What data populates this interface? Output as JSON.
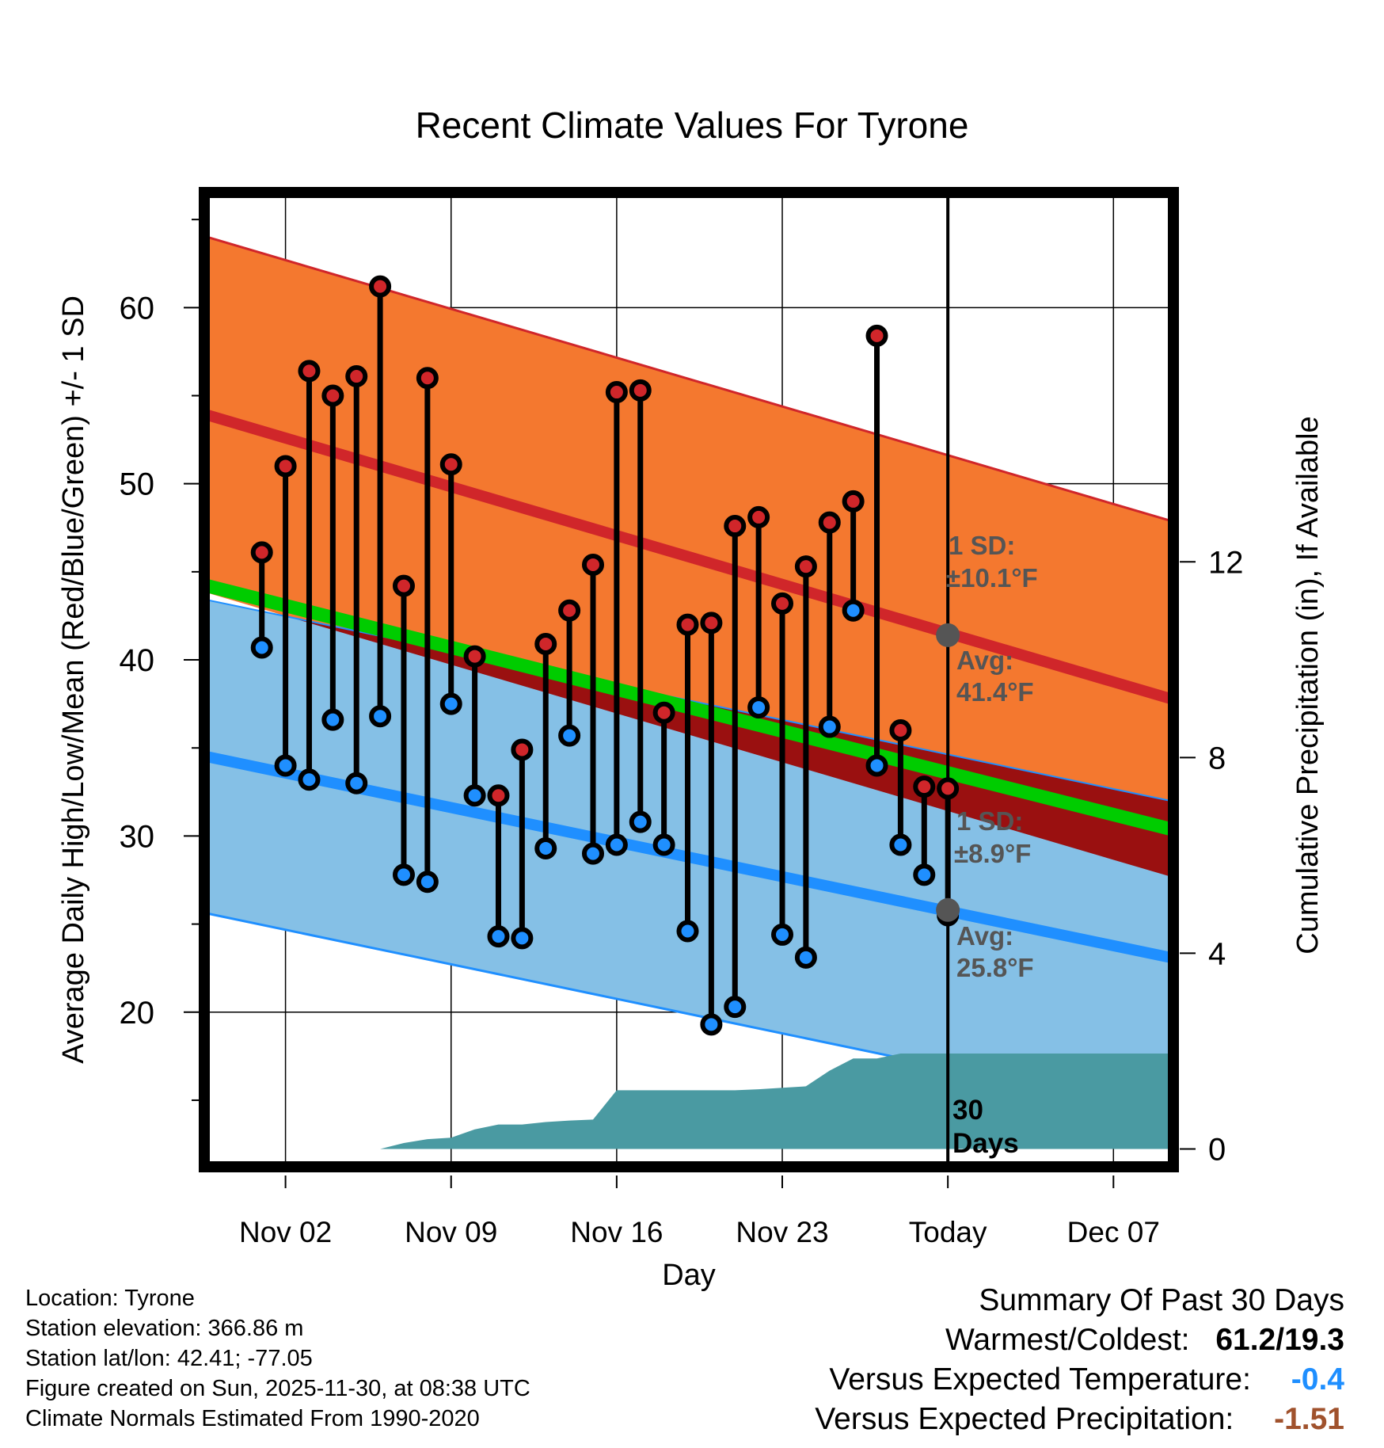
{
  "chart_data": {
    "type": "line",
    "title": "Recent Climate Values For Tyrone",
    "xlabel": "Day",
    "ylabel": "Average Daily High/Low/Mean (Red/Blue/Green) +/- 1 SD",
    "y2label": "Cumulative Precipitation (in), If Available",
    "x_tick_labels": [
      "Nov 02",
      "Nov 09",
      "Nov 16",
      "Nov 23",
      "Today",
      "Dec 07"
    ],
    "x_tick_days": [
      2,
      9,
      16,
      23,
      30,
      37
    ],
    "xlim": [
      -1.3,
      39.4
    ],
    "ylim": [
      11.4,
      66.4
    ],
    "y_ticks": [
      20,
      30,
      40,
      50,
      60
    ],
    "y2lim": [
      -0.3,
      19.5
    ],
    "y2_ticks": [
      0,
      4,
      8,
      12
    ],
    "today_day": 30,
    "normals": {
      "high_mean": {
        "start": 53.9,
        "end": 37.8
      },
      "high_sd": 10.1,
      "low_mean": {
        "start": 34.5,
        "end": 23.1
      },
      "low_sd": 8.9,
      "mean_line": {
        "start": 44.2,
        "end": 30.4
      },
      "x_range": [
        -1.3,
        39.4
      ]
    },
    "highs": [
      46.1,
      51.0,
      56.4,
      55.0,
      56.1,
      61.2,
      44.2,
      56.0,
      51.1,
      40.2,
      32.3,
      34.9,
      40.9,
      42.8,
      45.4,
      55.2,
      55.3,
      37.0,
      42.0,
      42.1,
      47.6,
      48.1,
      43.2,
      45.3,
      47.8,
      49.0,
      58.4,
      36.0,
      32.8,
      32.7
    ],
    "lows": [
      40.7,
      34.0,
      33.2,
      36.6,
      33.0,
      36.8,
      27.8,
      27.4,
      37.5,
      32.3,
      24.3,
      24.2,
      29.3,
      35.7,
      29.0,
      29.5,
      30.8,
      29.5,
      24.6,
      19.3,
      20.3,
      37.3,
      24.4,
      23.1,
      36.2,
      42.8,
      34.0,
      29.5,
      27.8,
      25.5
    ],
    "precip_cumulative": {
      "days": [
        1,
        2,
        3,
        4,
        5,
        6,
        7,
        8,
        9,
        10,
        11,
        12,
        13,
        14,
        15,
        16,
        17,
        18,
        19,
        20,
        21,
        22,
        23,
        24,
        25,
        26,
        27,
        28,
        29,
        30,
        39.4
      ],
      "values": [
        0,
        0,
        0,
        0,
        0,
        0,
        0.12,
        0.2,
        0.23,
        0.4,
        0.5,
        0.5,
        0.55,
        0.58,
        0.6,
        1.2,
        1.2,
        1.2,
        1.2,
        1.2,
        1.2,
        1.22,
        1.25,
        1.28,
        1.6,
        1.85,
        1.85,
        1.95,
        1.95,
        1.95,
        1.95
      ]
    },
    "annotations": {
      "high_sd_label_1": "1 SD:",
      "high_sd_label_2": "±10.1°F",
      "high_avg_label_1": "Avg:",
      "high_avg_label_2": "41.4°F",
      "high_avg_value": 41.4,
      "low_sd_label_1": "1 SD:",
      "low_sd_label_2": "±8.9°F",
      "low_avg_label_1": "Avg:",
      "low_avg_label_2": "25.8°F",
      "low_avg_value": 25.8,
      "days_label_1": "30",
      "days_label_2": "Days"
    },
    "colors": {
      "high_band": "#f4782f",
      "high_line": "#d0262a",
      "low_band": "#85c0e6",
      "low_line": "#1f8fff",
      "mean_line": "#00cc00",
      "overlap": "#9a1010",
      "precip": "#4a9aa2",
      "high_dot": "#d0262a",
      "low_dot": "#1f8fff",
      "annotation": "#555555"
    }
  },
  "info": {
    "location": "Location: Tyrone",
    "elevation": "Station elevation: 366.86 m",
    "latlon": "Station lat/lon: 42.41; -77.05",
    "created": "Figure created on Sun, 2025-11-30, at 08:38 UTC",
    "normals": "Climate Normals Estimated From 1990-2020"
  },
  "summary": {
    "title": "Summary Of Past 30 Days",
    "warm_cold_label": "Warmest/Coldest:",
    "warm_cold_value": "61.2/19.3",
    "temp_label": "Versus Expected Temperature:",
    "temp_value": "-0.4",
    "temp_color": "#1f8fff",
    "precip_label": "Versus Expected Precipitation:",
    "precip_value": "-1.51",
    "precip_color": "#a0522d"
  }
}
